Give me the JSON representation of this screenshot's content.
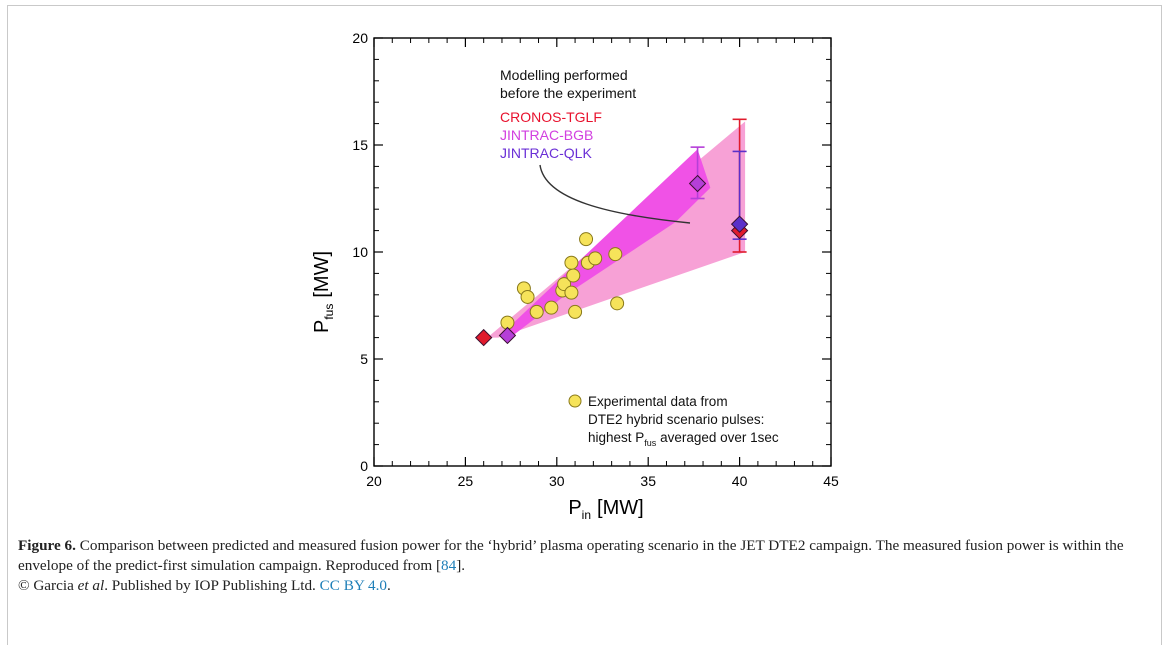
{
  "chart_data": {
    "type": "scatter",
    "xlabel": "P",
    "xlabel_sub": "in",
    "xlabel_unit": "[MW]",
    "ylabel": "P",
    "ylabel_sub": "fus",
    "ylabel_unit": "[MW]",
    "xlim": [
      20,
      45
    ],
    "ylim": [
      0,
      20
    ],
    "xticks": [
      20,
      25,
      30,
      35,
      40,
      45
    ],
    "yticks": [
      0,
      5,
      10,
      15,
      20
    ],
    "grid": false,
    "annotation": {
      "line1": "Modelling performed",
      "line2": "before the experiment",
      "models": [
        {
          "name": "CRONOS-TGLF",
          "color": "#e8112d"
        },
        {
          "name": "JINTRAC-BGB",
          "color": "#d23fe0"
        },
        {
          "name": "JINTRAC-QLK",
          "color": "#6a2fd6"
        }
      ]
    },
    "envelopes": [
      {
        "name": "outer",
        "color": "#f7a1d6",
        "polygon": [
          [
            26.2,
            6.0
          ],
          [
            40.3,
            16.1
          ],
          [
            40.3,
            10.0
          ],
          [
            26.8,
            6.0
          ]
        ]
      },
      {
        "name": "inner",
        "color": "#f052e6",
        "polygon": [
          [
            26.9,
            6.1
          ],
          [
            37.7,
            14.8
          ],
          [
            38.4,
            13.0
          ],
          [
            36.5,
            11.4
          ],
          [
            30.5,
            8.0
          ],
          [
            27.6,
            6.1
          ]
        ]
      }
    ],
    "series": [
      {
        "name": "Experimental data from DTE2 hybrid scenario pulses: highest P fus averaged over 1sec",
        "marker": "circle",
        "color": "#f6e35a",
        "x": [
          27.3,
          28.2,
          28.4,
          28.9,
          29.7,
          30.3,
          30.4,
          30.8,
          30.9,
          30.8,
          31.0,
          31.6,
          31.7,
          32.1,
          33.2,
          33.3
        ],
        "y": [
          6.7,
          8.3,
          7.9,
          7.2,
          7.4,
          8.2,
          8.5,
          8.1,
          8.9,
          9.5,
          7.2,
          10.6,
          9.5,
          9.7,
          9.9,
          7.6
        ]
      },
      {
        "name": "CRONOS-TGLF",
        "marker": "diamond",
        "color": "#e01b2d",
        "x": [
          26.0,
          40.0
        ],
        "y": [
          6.0,
          11.0
        ],
        "errorbars": [
          {
            "x": 40.0,
            "low": 10.0,
            "high": 16.2
          }
        ]
      },
      {
        "name": "JINTRAC-BGB",
        "marker": "diamond",
        "color": "#b53fd8",
        "x": [
          27.3,
          37.7
        ],
        "y": [
          6.1,
          13.2
        ],
        "errorbars": [
          {
            "x": 37.7,
            "low": 12.5,
            "high": 14.9
          }
        ]
      },
      {
        "name": "JINTRAC-QLK",
        "marker": "diamond",
        "color": "#5b30c9",
        "x": [
          40.0
        ],
        "y": [
          11.3
        ],
        "errorbars": [
          {
            "x": 40.0,
            "low": 10.6,
            "high": 14.7
          }
        ]
      }
    ],
    "legend": {
      "line1": "Experimental data from",
      "line2": "DTE2 hybrid scenario pulses:",
      "line3_pre": "highest P",
      "line3_sub": "fus",
      "line3_post": " averaged over 1sec"
    }
  },
  "caption": {
    "label": "Figure 6.",
    "text1": " Comparison between predicted and measured fusion power for the ‘hybrid’ plasma operating scenario in the JET DTE2 campaign. The measured fusion power is within the envelope of the predict-first simulation campaign. Reproduced from [",
    "ref": "84",
    "text2": "].",
    "copyright_pre": "© Garcia ",
    "etal": "et al",
    "copyright_post": ". Published by IOP Publishing Ltd. ",
    "license": "CC BY 4.0",
    "end": "."
  }
}
